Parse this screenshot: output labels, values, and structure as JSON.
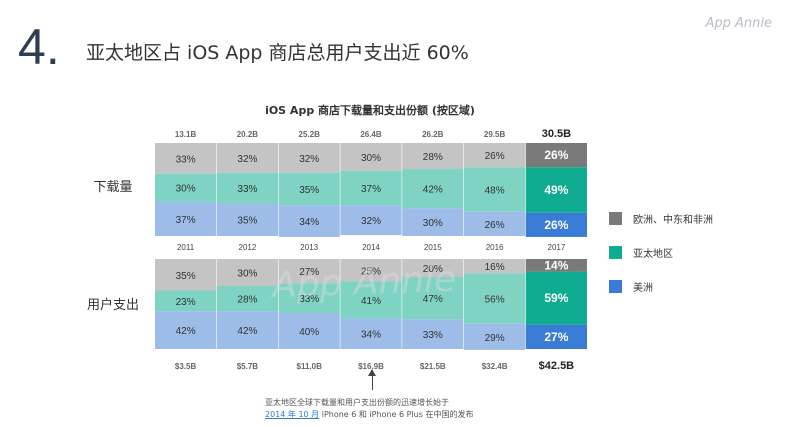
{
  "slide": {
    "number": "4",
    "dot": ".",
    "title": "亚太地区占 iOS App 商店总用户支出近 60%",
    "brand": "App Annie"
  },
  "colors": {
    "other": "#c4c4c4",
    "other_highlight": "#7a7a7a",
    "apac": "#7fd3c2",
    "apac_highlight": "#10ac91",
    "americas": "#9dbce8",
    "americas_highlight": "#3a7bd5"
  },
  "chart_data": {
    "type": "bar",
    "stacked": true,
    "normalized": true,
    "title": "iOS App 商店下载量和支出份额 (按区域)",
    "categories": [
      "2011",
      "2012",
      "2013",
      "2014",
      "2015",
      "2016",
      "2017"
    ],
    "highlight_category": "2017",
    "panels": [
      {
        "name": "下载量",
        "totals": [
          "13.1B",
          "20.2B",
          "25.2B",
          "26.4B",
          "26.2B",
          "29.5B",
          "30.5B"
        ],
        "series": [
          {
            "name": "美洲",
            "values": [
              37,
              35,
              34,
              32,
              30,
              26,
              26
            ]
          },
          {
            "name": "亚太地区",
            "values": [
              30,
              33,
              35,
              37,
              42,
              48,
              49
            ]
          },
          {
            "name": "欧洲、中东和非洲",
            "values": [
              33,
              32,
              32,
              30,
              28,
              26,
              26
            ]
          }
        ]
      },
      {
        "name": "用户支出",
        "totals": [
          "$3.5B",
          "$5.7B",
          "$11.0B",
          "$16.9B",
          "$21.5B",
          "$32.4B",
          "$42.5B"
        ],
        "series": [
          {
            "name": "美洲",
            "values": [
              42,
              42,
              40,
              34,
              33,
              29,
              27
            ]
          },
          {
            "name": "亚太地区",
            "values": [
              23,
              28,
              33,
              41,
              47,
              56,
              59
            ]
          },
          {
            "name": "欧洲、中东和非洲",
            "values": [
              35,
              30,
              27,
              25,
              20,
              16,
              14
            ]
          }
        ]
      }
    ],
    "legend": [
      "欧洲、中东和非洲",
      "亚太地区",
      "美洲"
    ],
    "legend_position": "right",
    "annotation": {
      "line1": "亚太地区全球下载量和用户支出份额的迅速增长始于",
      "link": "2014 年 10 月",
      "line2": " iPhone 6 和 iPhone 6 Plus 在中国的发布"
    }
  }
}
